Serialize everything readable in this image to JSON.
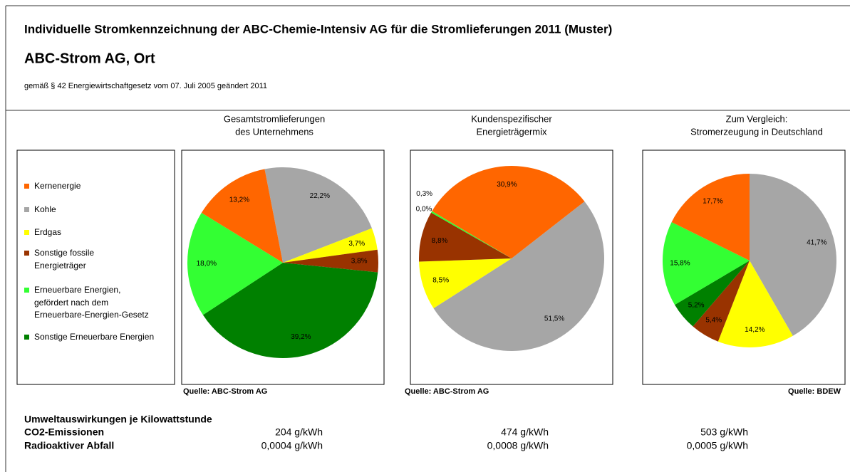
{
  "title": "Individuelle Stromkennzeichnung der ABC-Chemie-Intensiv AG für die Stromlieferungen 2011 (Muster)",
  "company": "ABC-Strom AG, Ort",
  "subtitle": "gemäß § 42 Energiewirtschaftgesetz vom 07. Juli 2005 geändert 2011",
  "legend": [
    {
      "name": [
        "Kernenergie"
      ],
      "color": "#ff6600"
    },
    {
      "name": [
        "Kohle"
      ],
      "color": "#a6a6a6"
    },
    {
      "name": [
        "Erdgas"
      ],
      "color": "#ffff00"
    },
    {
      "name": [
        "Sonstige fossile",
        "Energieträger"
      ],
      "color": "#993300"
    },
    {
      "name": [
        "Erneuerbare Energien,",
        "gefördert nach dem",
        "Erneuerbare-Energien-Gesetz"
      ],
      "color": "#33ff33"
    },
    {
      "name": [
        "Sonstige Erneuerbare Energien"
      ],
      "color": "#008000"
    }
  ],
  "chart_data": [
    {
      "type": "pie",
      "title": [
        "Gesamtstromlieferungen",
        "des Unternehmens"
      ],
      "source": "Quelle: ABC-Strom AG",
      "values": [
        13.2,
        22.2,
        3.7,
        3.8,
        18.0,
        39.2
      ],
      "value_labels": [
        "13,2%",
        "22,2%",
        "3,7%",
        "3,8%",
        "18,0%",
        "39,2%"
      ]
    },
    {
      "type": "pie",
      "title": [
        "Kundenspezifischer",
        "Energieträgermix"
      ],
      "source": "Quelle: ABC-Strom AG",
      "values": [
        30.9,
        51.5,
        8.5,
        8.8,
        0.3,
        0.0
      ],
      "value_labels": [
        "30,9%",
        "51,5%",
        "8,5%",
        "8,8%",
        "0,3%",
        "0,0%"
      ]
    },
    {
      "type": "pie",
      "title": [
        "Zum Vergleich:",
        "Stromerzeugung in Deutschland"
      ],
      "source": "Quelle: BDEW",
      "values": [
        17.7,
        41.7,
        14.2,
        5.4,
        15.8,
        5.2
      ],
      "value_labels": [
        "17,7%",
        "41,7%",
        "14,2%",
        "5,4%",
        "15,8%",
        "5,2%"
      ]
    }
  ],
  "impact": {
    "heading": "Umweltauswirkungen je Kilowattstunde",
    "rows": [
      [
        "CO2-Emissionen",
        "204 g/kWh",
        "474 g/kWh",
        "503 g/kWh"
      ],
      [
        "Radioaktiver Abfall",
        "0,0004 g/kWh",
        "0,0008 g/kWh",
        "0,0005 g/kWh"
      ]
    ]
  }
}
